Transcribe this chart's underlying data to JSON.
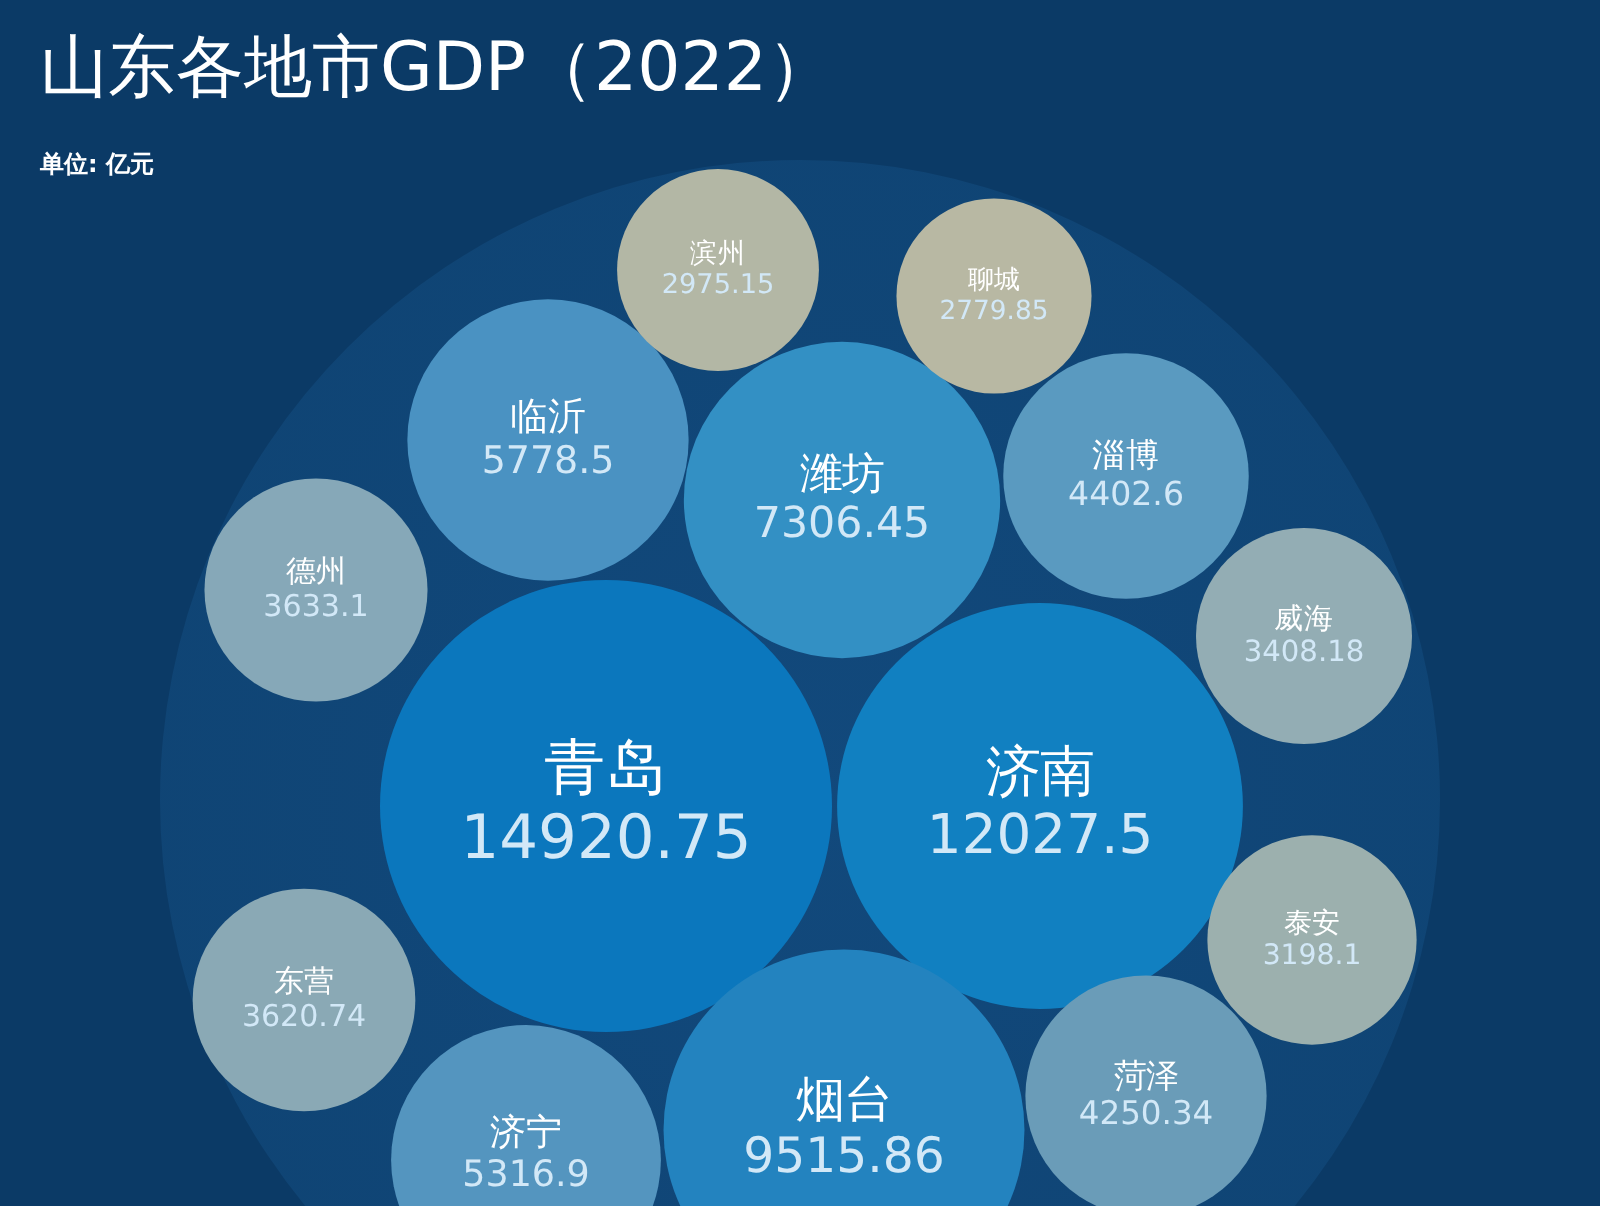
{
  "chart_data": {
    "type": "other",
    "title": "山东各地市GDP（2022）",
    "subtitle": "单位: 亿元",
    "categories": [
      "青岛",
      "济南",
      "烟台",
      "潍坊",
      "临沂",
      "济宁",
      "淄博",
      "菏泽",
      "德州",
      "东营",
      "威海",
      "泰安",
      "滨州",
      "聊城"
    ],
    "values": [
      14920.75,
      12027.5,
      9515.86,
      7306.45,
      5778.5,
      5316.9,
      4402.6,
      4250.34,
      3633.1,
      3620.74,
      3408.18,
      3198.1,
      2975.15,
      2779.85
    ],
    "colors": [
      "#0b77bd",
      "#1180c1",
      "#2383bf",
      "#3390c4",
      "#4a92c2",
      "#5495bf",
      "#5a9ac0",
      "#6a9cb8",
      "#86a8b8",
      "#8aa9b5",
      "#93adb4",
      "#9cb0ae",
      "#b3b7a5",
      "#b8b8a3"
    ],
    "data_labels": true
  }
}
